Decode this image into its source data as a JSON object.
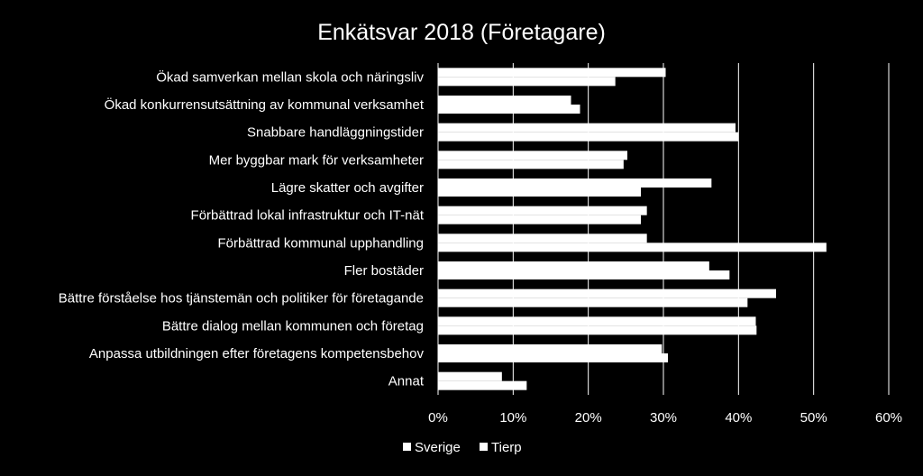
{
  "chart_data": {
    "type": "bar",
    "orientation": "horizontal",
    "title": "Enkätsvar 2018 (Företagare)",
    "categories": [
      "Ökad samverkan mellan skola och näringsliv",
      "Ökad konkurrensutsättning av kommunal verksamhet",
      "Snabbare handläggningstider",
      "Mer byggbar mark för verksamheter",
      "Lägre skatter och avgifter",
      "Förbättrad lokal infrastruktur och IT-nät",
      "Förbättrad kommunal upphandling",
      "Fler bostäder",
      "Bättre förståelse hos tjänstemän och politiker för företagande",
      "Bättre dialog mellan kommunen och företag",
      "Anpassa utbildningen efter företagens kompetensbehov",
      "Annat"
    ],
    "series": [
      {
        "name": "Sverige",
        "values": [
          30.3,
          17.7,
          39.6,
          25.2,
          36.4,
          27.8,
          27.8,
          36.1,
          45.0,
          42.3,
          29.8,
          8.5
        ]
      },
      {
        "name": "Tierp",
        "values": [
          23.6,
          18.9,
          40.0,
          24.7,
          27.0,
          27.0,
          51.7,
          38.8,
          41.2,
          42.4,
          30.6,
          11.8
        ]
      }
    ],
    "xlim": [
      0,
      60
    ],
    "xticks": [
      "0%",
      "10%",
      "20%",
      "30%",
      "40%",
      "50%",
      "60%"
    ],
    "grid": true,
    "legend_position": "bottom",
    "colors": {
      "background": "#000000",
      "bars": "#ffffff",
      "text": "#ffffff",
      "grid": "#ffffff"
    }
  }
}
